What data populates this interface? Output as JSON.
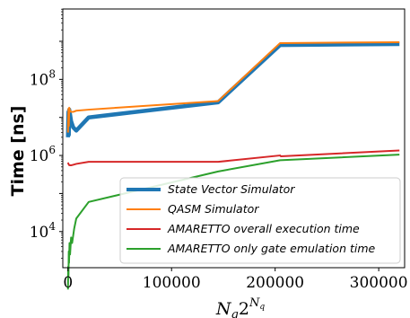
{
  "chart_data": {
    "type": "line",
    "title": "",
    "xlabel_base": "N",
    "xlabel_sub": "g",
    "xlabel_mid": "2",
    "xlabel_sup": "N",
    "xlabel_supsub": "q",
    "ylabel": "Time [ns]",
    "y_scale": "log",
    "xlim": [
      -5000,
      325000
    ],
    "ylim_log10": [
      3.05,
      9.85
    ],
    "x_ticks": [
      0,
      100000,
      200000,
      300000
    ],
    "x_tick_labels": [
      "0",
      "100000",
      "200000",
      "300000"
    ],
    "y_ticks_log10": [
      4,
      6,
      8
    ],
    "y_tick_bases": [
      "10",
      "10",
      "10"
    ],
    "y_tick_exps": [
      "4",
      "6",
      "8"
    ],
    "legend_position": "lower right",
    "grid": false,
    "series": [
      {
        "name": "State Vector Simulator",
        "color": "#1f77b4",
        "x": [
          0,
          200,
          500,
          800,
          1200,
          2000,
          3000,
          5000,
          8000,
          20000,
          145000,
          204800,
          320000
        ],
        "y": [
          3000000,
          6000000,
          14000000,
          3500000,
          16000000,
          12000000,
          8000000,
          5500000,
          4500000,
          10000000,
          25000000,
          800000000,
          850000000
        ]
      },
      {
        "name": "QASM Simulator",
        "color": "#ff7f0e",
        "x": [
          0,
          200,
          500,
          800,
          1200,
          2000,
          3000,
          5000,
          8000,
          20000,
          145000,
          204800,
          320000
        ],
        "y": [
          4000000,
          8000000,
          17000000,
          6000000,
          18000000,
          15000000,
          14000000,
          14000000,
          15000000,
          16000000,
          27000000,
          900000000,
          950000000
        ]
      },
      {
        "name": "AMARETTO overall execution time",
        "color": "#d62728",
        "x": [
          0,
          500,
          1000,
          2000,
          3000,
          5000,
          8000,
          20000,
          145000,
          204800,
          205500,
          320000
        ],
        "y": [
          650000,
          600000,
          560000,
          550000,
          550000,
          570000,
          600000,
          680000,
          680000,
          1000000,
          950000,
          1350000
        ]
      },
      {
        "name": "AMARETTO only gate emulation time",
        "color": "#2ca02c",
        "x": [
          0,
          250,
          500,
          750,
          1000,
          1500,
          2000,
          3000,
          4000,
          6000,
          8000,
          20000,
          145000,
          204800,
          320000
        ],
        "y": [
          300,
          1200,
          700,
          3000,
          1500,
          5000,
          2500,
          7000,
          5000,
          12000,
          22000,
          60000,
          380000,
          750000,
          1050000
        ]
      }
    ]
  }
}
